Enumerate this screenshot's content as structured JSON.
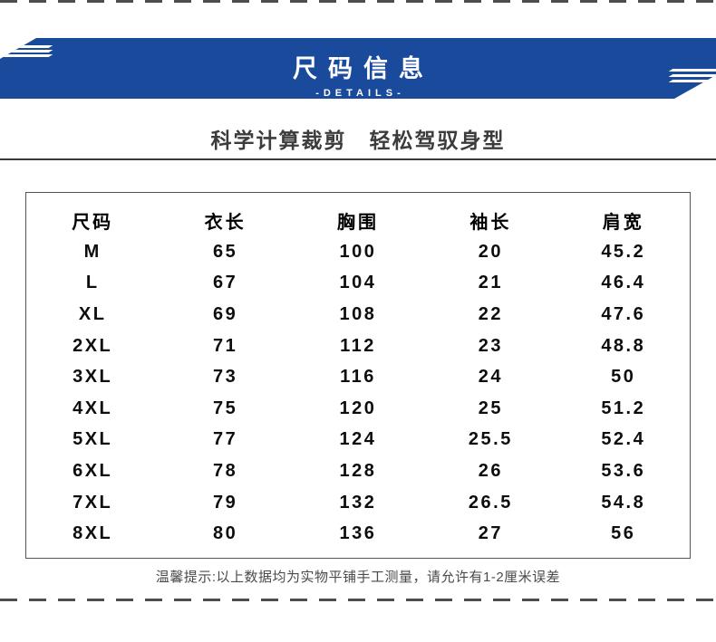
{
  "header": {
    "title": "尺码信息",
    "subtitle": "-DETAILS-"
  },
  "tagline": "科学计算裁剪　轻松驾驭身型",
  "size_table": {
    "columns": [
      "尺码",
      "衣长",
      "胸围",
      "袖长",
      "肩宽"
    ],
    "rows": [
      [
        "M",
        "65",
        "100",
        "20",
        "45.2"
      ],
      [
        "L",
        "67",
        "104",
        "21",
        "46.4"
      ],
      [
        "XL",
        "69",
        "108",
        "22",
        "47.6"
      ],
      [
        "2XL",
        "71",
        "112",
        "23",
        "48.8"
      ],
      [
        "3XL",
        "73",
        "116",
        "24",
        "50"
      ],
      [
        "4XL",
        "75",
        "120",
        "25",
        "51.2"
      ],
      [
        "5XL",
        "77",
        "124",
        "25.5",
        "52.4"
      ],
      [
        "6XL",
        "78",
        "128",
        "26",
        "53.6"
      ],
      [
        "7XL",
        "79",
        "132",
        "26.5",
        "54.8"
      ],
      [
        "8XL",
        "80",
        "136",
        "27",
        "56"
      ]
    ]
  },
  "note": "温馨提示:以上数据均为实物平铺手工测量，请允许有1-2厘米误差",
  "colors": {
    "accent_blue": "#1a4a9c",
    "dash_gray": "#4d4d4d"
  }
}
